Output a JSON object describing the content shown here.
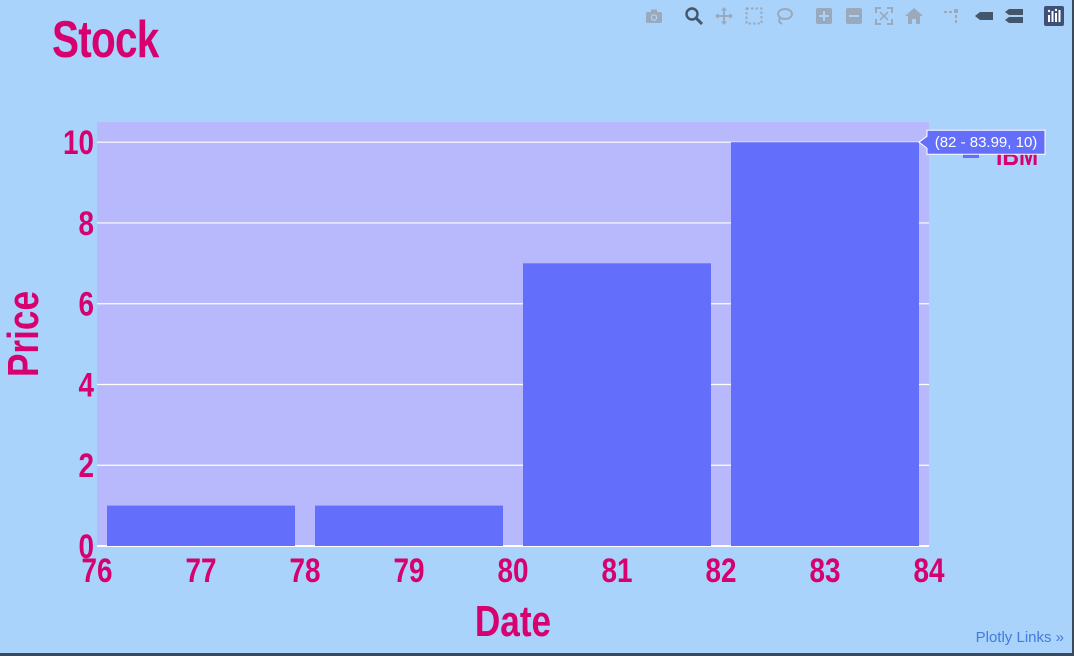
{
  "title": "Stock",
  "plotly_link_text": "Plotly Links »",
  "tooltip_text": "(82 - 83.99, 10)",
  "legend_text": "IBM",
  "modebar": {
    "icons": [
      "camera-icon",
      "zoom-icon",
      "pan-icon",
      "box-select-icon",
      "lasso-icon",
      "zoom-in-icon",
      "zoom-out-icon",
      "autoscale-icon",
      "reset-axes-icon",
      "spike-lines-icon",
      "hover-closest-icon",
      "hover-compare-icon",
      "plotly-logo-icon"
    ]
  },
  "colors": {
    "background": "#a9d3fb",
    "plot_background": "#b8b8fc",
    "bar": "#636efa",
    "text": "#d6006f",
    "grid": "#ffffff"
  },
  "chart_data": {
    "type": "bar",
    "title": "Stock",
    "xlabel": "Date",
    "ylabel": "Price",
    "xlim": [
      76,
      84
    ],
    "ylim": [
      0,
      10.5
    ],
    "x_ticks": [
      "76",
      "77",
      "78",
      "79",
      "80",
      "81",
      "82",
      "83",
      "84"
    ],
    "y_ticks": [
      "0",
      "2",
      "4",
      "6",
      "8",
      "10"
    ],
    "grid": true,
    "legend_position": "top-right",
    "series": [
      {
        "name": "IBM",
        "bins": [
          {
            "start": 76,
            "end": 78,
            "value": 1
          },
          {
            "start": 78,
            "end": 80,
            "value": 1
          },
          {
            "start": 80,
            "end": 82,
            "value": 7
          },
          {
            "start": 82,
            "end": 84,
            "value": 10
          }
        ]
      }
    ]
  }
}
